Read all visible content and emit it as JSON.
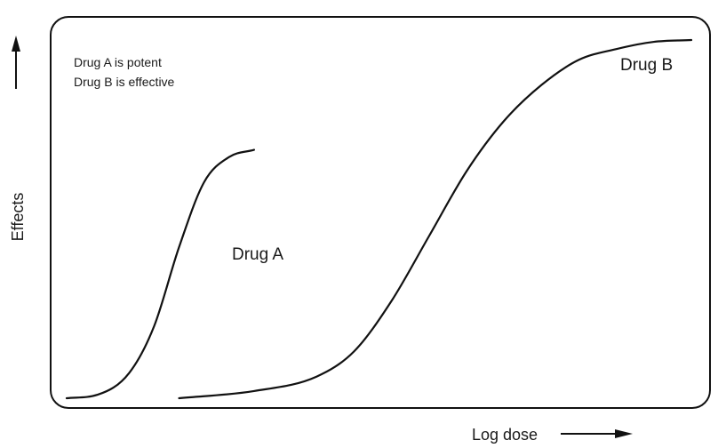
{
  "chart_data": {
    "type": "line",
    "xlabel": "Log dose",
    "ylabel": "Effects",
    "annotations": [
      "Drug A is potent",
      "Drug B is effective"
    ],
    "grid": false,
    "legend": "none",
    "x_axis_arrow": true,
    "y_axis_arrow": true,
    "xlim": [
      0,
      100
    ],
    "ylim": [
      0,
      100
    ],
    "series": [
      {
        "name": "Drug A",
        "x": [
          0,
          5,
          10,
          14,
          18,
          22,
          26,
          30
        ],
        "y": [
          0,
          1,
          7,
          20,
          42,
          60,
          67,
          69
        ]
      },
      {
        "name": "Drug B",
        "x": [
          18,
          30,
          40,
          46,
          52,
          58,
          64,
          70,
          76,
          82,
          88,
          94,
          100
        ],
        "y": [
          0,
          2,
          6,
          13,
          27,
          45,
          63,
          77,
          87,
          94,
          97,
          99,
          99.5
        ]
      }
    ],
    "colors": {
      "line": "#111111",
      "text": "#1a1a1a",
      "frame": "#111111"
    }
  }
}
